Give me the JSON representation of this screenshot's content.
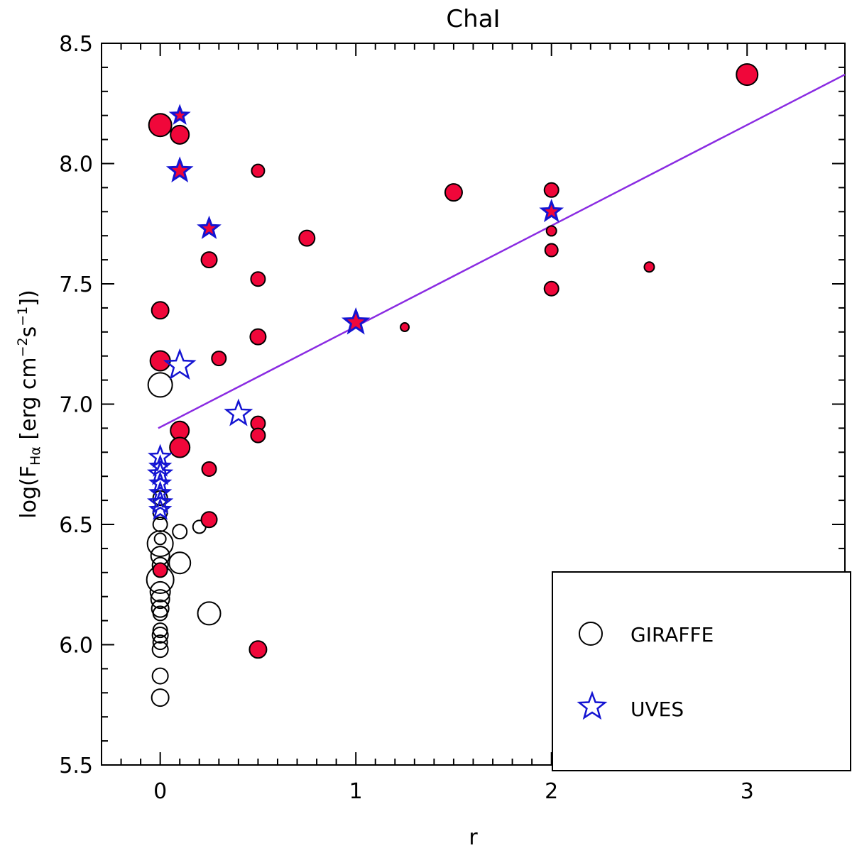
{
  "chart_data": {
    "type": "scatter",
    "title": "ChaI",
    "xlabel": "r",
    "ylabel": {
      "prefix": "log(F",
      "subscript": "Hα",
      "middle": " [erg cm",
      "sup1": "−2",
      "s": "s",
      "sup2": "−1",
      "suffix": "])"
    },
    "xlim": [
      -0.3,
      3.5
    ],
    "ylim": [
      5.5,
      8.5
    ],
    "x_ticks": [
      0,
      1,
      2,
      3
    ],
    "x_tick_labels": [
      "0",
      "1",
      "2",
      "3"
    ],
    "y_ticks": [
      5.5,
      6.0,
      6.5,
      7.0,
      7.5,
      8.0,
      8.5
    ],
    "y_tick_labels": [
      "5.5",
      "6.0",
      "6.5",
      "7.0",
      "7.5",
      "8.0",
      "8.5"
    ],
    "colors": {
      "filled": "#f0073a",
      "uves": "#1414d2",
      "fit": "#8a2be2",
      "edge": "#000000"
    },
    "series": [
      {
        "name": "GIRAFFE open",
        "marker": "circle",
        "filled": false,
        "points": [
          {
            "x": 0.0,
            "y": 7.08,
            "s": 17
          },
          {
            "x": 0.0,
            "y": 6.61,
            "s": 10
          },
          {
            "x": 0.0,
            "y": 6.55,
            "s": 10
          },
          {
            "x": 0.0,
            "y": 6.5,
            "s": 10
          },
          {
            "x": 0.0,
            "y": 6.44,
            "s": 8
          },
          {
            "x": 0.0,
            "y": 6.42,
            "s": 18
          },
          {
            "x": 0.0,
            "y": 6.37,
            "s": 13
          },
          {
            "x": 0.0,
            "y": 6.33,
            "s": 11
          },
          {
            "x": 0.0,
            "y": 6.27,
            "s": 19
          },
          {
            "x": 0.0,
            "y": 6.22,
            "s": 14
          },
          {
            "x": 0.0,
            "y": 6.19,
            "s": 13
          },
          {
            "x": 0.0,
            "y": 6.15,
            "s": 12
          },
          {
            "x": 0.0,
            "y": 6.13,
            "s": 10
          },
          {
            "x": 0.0,
            "y": 6.06,
            "s": 10
          },
          {
            "x": 0.0,
            "y": 6.04,
            "s": 11
          },
          {
            "x": 0.0,
            "y": 6.01,
            "s": 10
          },
          {
            "x": 0.0,
            "y": 5.98,
            "s": 11
          },
          {
            "x": 0.0,
            "y": 5.87,
            "s": 11
          },
          {
            "x": 0.0,
            "y": 5.78,
            "s": 12
          },
          {
            "x": 0.1,
            "y": 6.47,
            "s": 10
          },
          {
            "x": 0.1,
            "y": 6.34,
            "s": 15
          },
          {
            "x": 0.2,
            "y": 6.49,
            "s": 9
          },
          {
            "x": 0.25,
            "y": 6.13,
            "s": 16
          }
        ]
      },
      {
        "name": "GIRAFFE filled",
        "marker": "circle",
        "filled": true,
        "points": [
          {
            "x": 0.0,
            "y": 8.16,
            "s": 16
          },
          {
            "x": 0.1,
            "y": 8.12,
            "s": 13
          },
          {
            "x": 0.5,
            "y": 7.97,
            "s": 9
          },
          {
            "x": 1.5,
            "y": 7.88,
            "s": 12
          },
          {
            "x": 2.0,
            "y": 7.89,
            "s": 10
          },
          {
            "x": 2.0,
            "y": 7.72,
            "s": 7
          },
          {
            "x": 2.0,
            "y": 7.64,
            "s": 9
          },
          {
            "x": 2.0,
            "y": 7.48,
            "s": 10
          },
          {
            "x": 0.75,
            "y": 7.69,
            "s": 11
          },
          {
            "x": 0.25,
            "y": 7.6,
            "s": 11
          },
          {
            "x": 0.5,
            "y": 7.52,
            "s": 10
          },
          {
            "x": 2.5,
            "y": 7.57,
            "s": 7
          },
          {
            "x": 0.0,
            "y": 7.39,
            "s": 12
          },
          {
            "x": 1.25,
            "y": 7.32,
            "s": 6
          },
          {
            "x": 0.5,
            "y": 7.28,
            "s": 11
          },
          {
            "x": 0.3,
            "y": 7.19,
            "s": 10
          },
          {
            "x": 0.0,
            "y": 7.18,
            "s": 14
          },
          {
            "x": 0.1,
            "y": 6.89,
            "s": 13
          },
          {
            "x": 0.1,
            "y": 6.82,
            "s": 14
          },
          {
            "x": 0.5,
            "y": 6.92,
            "s": 10
          },
          {
            "x": 0.5,
            "y": 6.87,
            "s": 10
          },
          {
            "x": 0.25,
            "y": 6.73,
            "s": 10
          },
          {
            "x": 0.25,
            "y": 6.52,
            "s": 11
          },
          {
            "x": 0.0,
            "y": 6.31,
            "s": 10
          },
          {
            "x": 0.5,
            "y": 5.98,
            "s": 12
          },
          {
            "x": 3.0,
            "y": 8.37,
            "s": 15
          }
        ]
      },
      {
        "name": "UVES filled",
        "marker": "star",
        "filled": true,
        "points": [
          {
            "x": 0.1,
            "y": 8.2,
            "s": 12
          },
          {
            "x": 0.1,
            "y": 7.97,
            "s": 16
          },
          {
            "x": 0.25,
            "y": 7.73,
            "s": 14
          },
          {
            "x": 2.0,
            "y": 7.8,
            "s": 14
          },
          {
            "x": 1.0,
            "y": 7.34,
            "s": 17
          }
        ]
      },
      {
        "name": "UVES open",
        "marker": "star",
        "filled": false,
        "points": [
          {
            "x": 0.1,
            "y": 7.16,
            "s": 21
          },
          {
            "x": 0.4,
            "y": 6.96,
            "s": 18
          },
          {
            "x": 0.0,
            "y": 6.78,
            "s": 15
          },
          {
            "x": 0.0,
            "y": 6.74,
            "s": 14
          },
          {
            "x": 0.0,
            "y": 6.71,
            "s": 16
          },
          {
            "x": 0.0,
            "y": 6.67,
            "s": 14
          },
          {
            "x": 0.0,
            "y": 6.63,
            "s": 14
          },
          {
            "x": 0.0,
            "y": 6.59,
            "s": 16
          },
          {
            "x": 0.0,
            "y": 6.56,
            "s": 14
          }
        ]
      }
    ],
    "fit_line": {
      "x": [
        -0.01,
        3.5
      ],
      "y": [
        6.9,
        8.37
      ]
    },
    "legend": {
      "position": "bottom-right",
      "entries": [
        {
          "label": "GIRAFFE",
          "marker": "circle"
        },
        {
          "label": "UVES",
          "marker": "star"
        }
      ]
    }
  }
}
